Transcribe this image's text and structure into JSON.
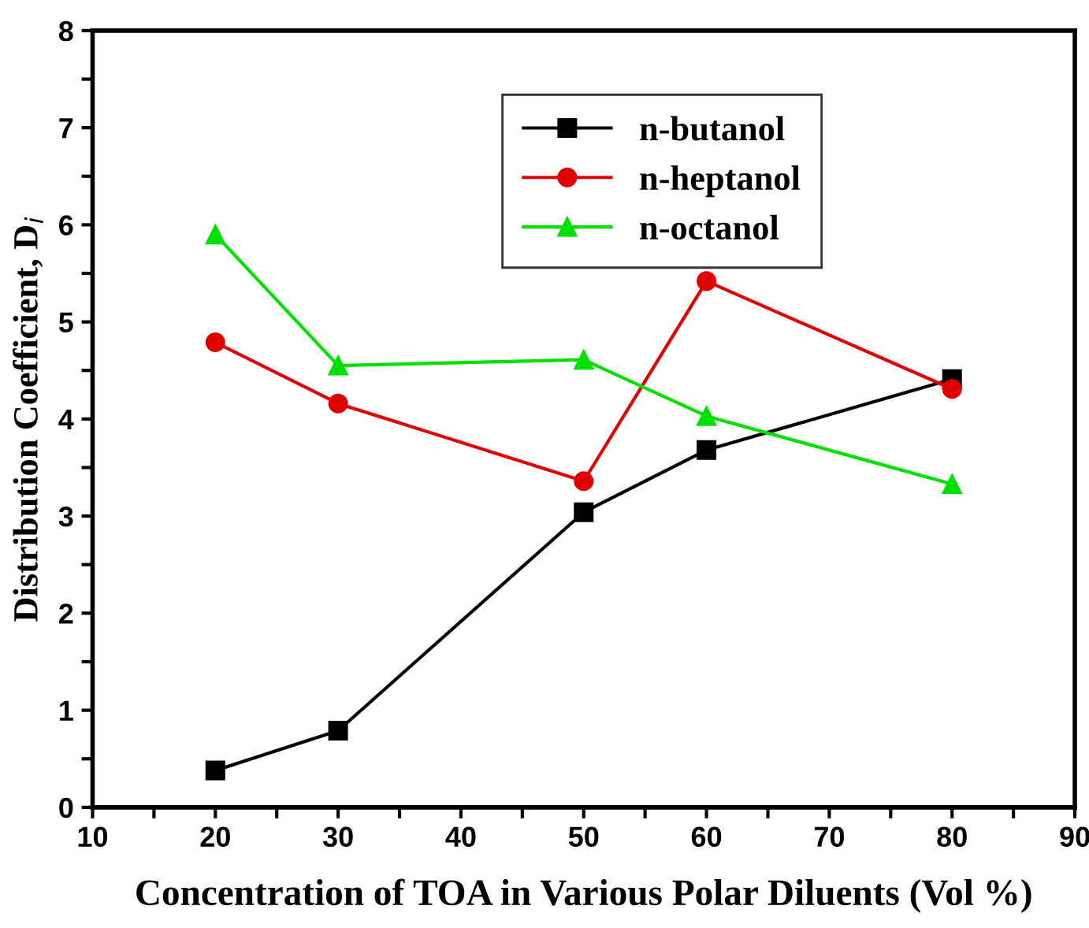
{
  "chart_data": {
    "type": "line",
    "xlabel": "Concentration of TOA in Various Polar Diluents (Vol %)",
    "ylabel": "Distribution Coefficient, D$_{i}$",
    "x": [
      20,
      30,
      50,
      60,
      80
    ],
    "series": [
      {
        "name": "n-butanol",
        "color": "#000000",
        "marker": "square",
        "values": [
          0.38,
          0.79,
          3.04,
          3.68,
          4.41
        ]
      },
      {
        "name": "n-heptanol",
        "color": "#e00000",
        "marker": "circle",
        "values": [
          4.79,
          4.16,
          3.36,
          5.42,
          4.31
        ]
      },
      {
        "name": "n-octanol",
        "color": "#00e000",
        "marker": "triangle",
        "values": [
          5.9,
          4.55,
          4.61,
          4.03,
          3.33
        ]
      }
    ],
    "xlim": [
      10,
      90
    ],
    "ylim": [
      0,
      8
    ],
    "xticks": [
      10,
      {
        "value": 15,
        "label": null
      },
      20,
      {
        "value": 25,
        "label": null
      },
      30,
      {
        "value": 35,
        "label": null
      },
      40,
      {
        "value": 45,
        "label": null
      },
      50,
      {
        "value": 55,
        "label": null
      },
      60,
      {
        "value": 65,
        "label": null
      },
      70,
      {
        "value": 75,
        "label": null
      },
      80,
      {
        "value": 85,
        "label": null
      },
      90
    ],
    "yticks": [
      0,
      {
        "value": 0.5,
        "label": null
      },
      1,
      {
        "value": 1.5,
        "label": null
      },
      2,
      {
        "value": 2.5,
        "label": null
      },
      3,
      {
        "value": 3.5,
        "label": null
      },
      4,
      {
        "value": 4.5,
        "label": null
      },
      5,
      {
        "value": 5.5,
        "label": null
      },
      6,
      {
        "value": 6.5,
        "label": null
      },
      7,
      {
        "value": 7.5,
        "label": null
      },
      8
    ],
    "grid": false,
    "legend": "top right",
    "line_style": "solid"
  }
}
